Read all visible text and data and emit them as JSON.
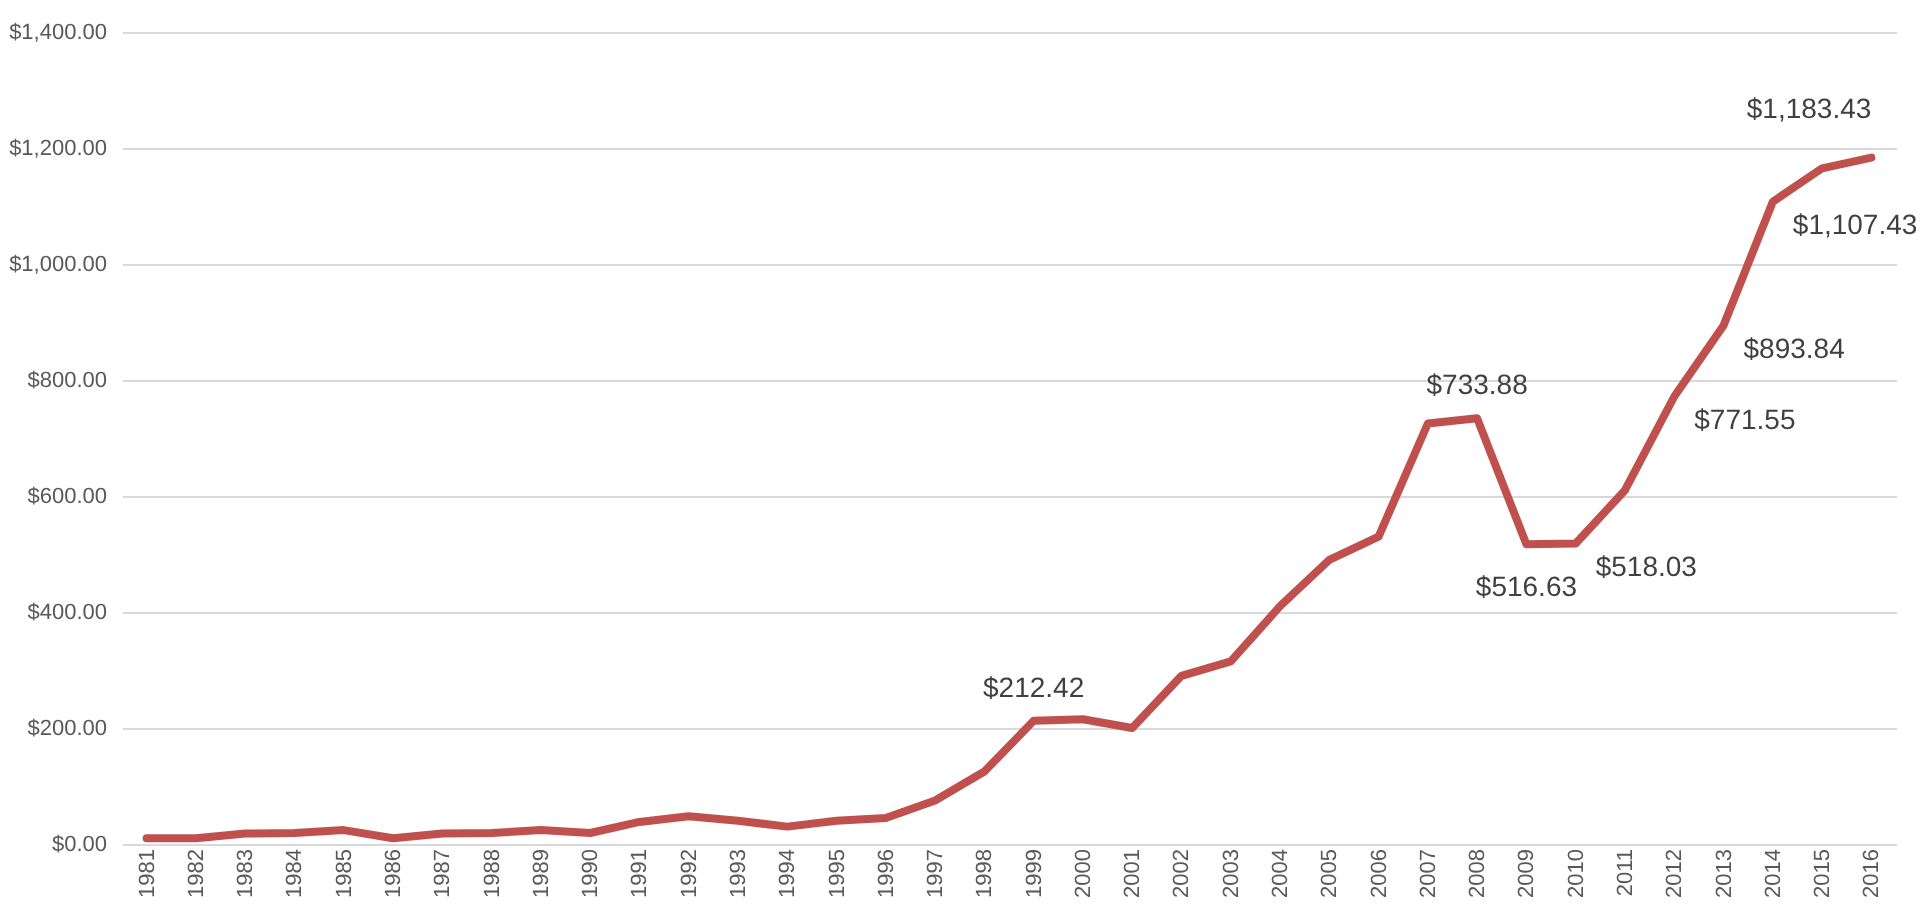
{
  "chart_data": {
    "type": "line",
    "categories": [
      "1981",
      "1982",
      "1983",
      "1984",
      "1985",
      "1986",
      "1987",
      "1988",
      "1989",
      "1990",
      "1991",
      "1992",
      "1993",
      "1994",
      "1995",
      "1996",
      "1997",
      "1998",
      "1999",
      "2000",
      "2001",
      "2002",
      "2003",
      "2004",
      "2005",
      "2006",
      "2007",
      "2008",
      "2009",
      "2010",
      "2011",
      "2012",
      "2013",
      "2014",
      "2015",
      "2016"
    ],
    "series": [
      {
        "color": "#c0504d",
        "values": [
          10,
          10,
          18,
          19,
          24,
          10,
          18,
          19,
          24,
          19,
          38,
          48,
          40,
          30,
          40,
          45,
          75,
          125,
          212.42,
          215,
          200,
          290,
          315,
          410,
          490,
          530,
          725,
          733.88,
          516.63,
          518.03,
          610,
          771.55,
          893.84,
          1107.43,
          1165,
          1183.43
        ],
        "value_labels": [
          null,
          null,
          null,
          null,
          null,
          null,
          null,
          null,
          null,
          null,
          null,
          null,
          null,
          null,
          null,
          null,
          null,
          null,
          "$212.42",
          null,
          null,
          null,
          null,
          null,
          null,
          null,
          null,
          "$733.88",
          "$516.63",
          "$518.03",
          null,
          "$771.55",
          "$893.84",
          "$1,107.43",
          null,
          "$1,183.43"
        ]
      }
    ],
    "ylim": [
      0,
      1400
    ],
    "yticks": [
      {
        "value": 0,
        "label": "$0.00"
      },
      {
        "value": 200,
        "label": "$200.00"
      },
      {
        "value": 400,
        "label": "$400.00"
      },
      {
        "value": 600,
        "label": "$600.00"
      },
      {
        "value": 800,
        "label": "$800.00"
      },
      {
        "value": 1000,
        "label": "$1,000.00"
      },
      {
        "value": 1200,
        "label": "$1,200.00"
      },
      {
        "value": 1400,
        "label": "$1,400.00"
      }
    ],
    "grid": "y",
    "line_style": "solid",
    "marker": "none",
    "legend": false
  }
}
